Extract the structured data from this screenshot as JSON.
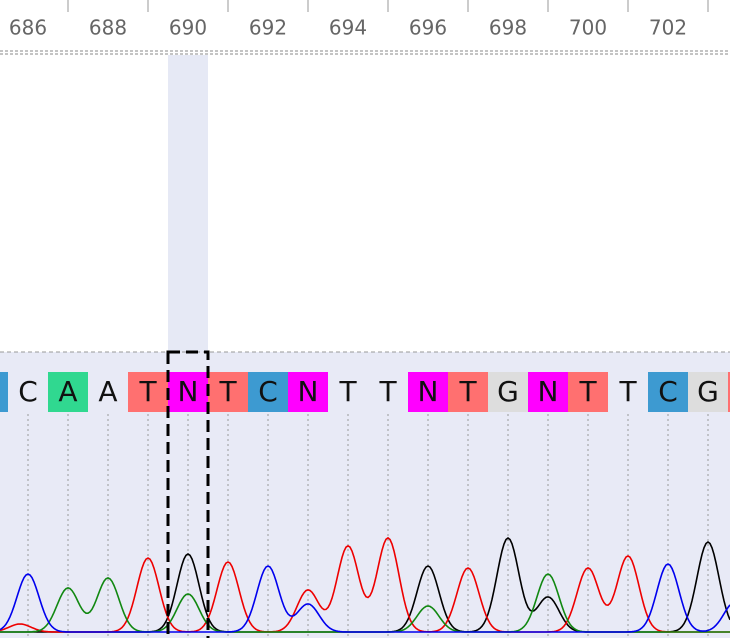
{
  "ruler": {
    "labels": [
      "686",
      "688",
      "690",
      "692",
      "694",
      "696",
      "698",
      "700",
      "702"
    ]
  },
  "bases": [
    "C",
    "A",
    "A",
    "T",
    "N",
    "T",
    "C",
    "N",
    "T",
    "T",
    "N",
    "T",
    "G",
    "N",
    "T",
    "T",
    "C",
    "G"
  ]
}
